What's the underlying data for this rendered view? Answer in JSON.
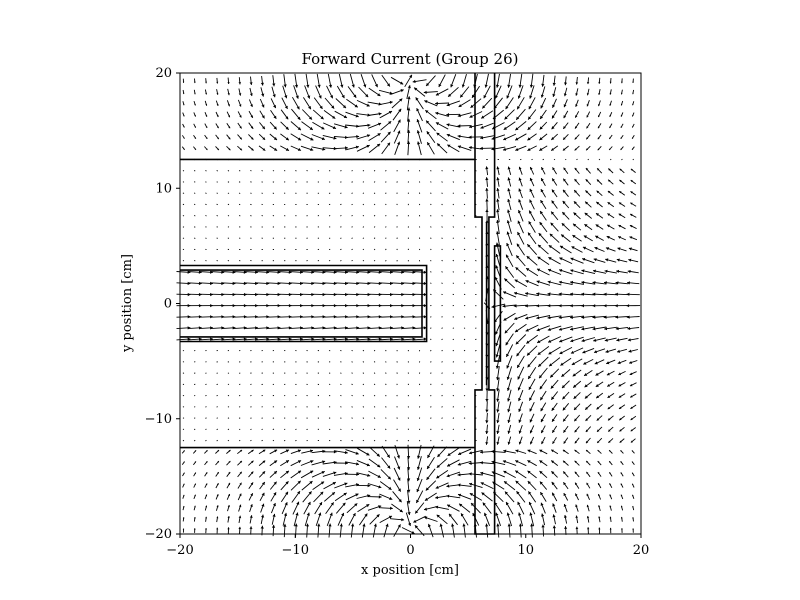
{
  "chart_data": {
    "type": "quiver",
    "title": "Forward Current (Group 26)",
    "xlabel": "x position [cm]",
    "ylabel": "y position [cm]",
    "xlim": [
      -20,
      20
    ],
    "ylim": [
      -20,
      20
    ],
    "xticks": [
      -20,
      -10,
      0,
      10,
      20
    ],
    "yticks": [
      -20,
      -10,
      0,
      10,
      20
    ],
    "xtick_labels": [
      "−20",
      "−10",
      "0",
      "10",
      "20"
    ],
    "ytick_labels": [
      "−20",
      "−10",
      "0",
      "10",
      "20"
    ],
    "grid": false,
    "line_color": "#000000",
    "arrow_color": "#000000",
    "geometry": {
      "upper_boundary": [
        [
          -20,
          12.5
        ],
        [
          5.6,
          12.5
        ]
      ],
      "lower_boundary": [
        [
          -20,
          -12.5
        ],
        [
          5.6,
          -12.5
        ]
      ],
      "rod_outer": [
        [
          -20,
          3.3
        ],
        [
          1.4,
          3.3
        ],
        [
          1.4,
          -3.3
        ],
        [
          -20,
          -3.3
        ]
      ],
      "rod_inner": [
        [
          -20,
          2.9
        ],
        [
          1.0,
          2.9
        ],
        [
          1.0,
          -2.9
        ],
        [
          -20,
          -2.9
        ]
      ],
      "channel_outline": [
        [
          5.6,
          20
        ],
        [
          5.6,
          7.5
        ],
        [
          6.2,
          7.5
        ],
        [
          6.2,
          -7.5
        ],
        [
          5.6,
          -7.5
        ],
        [
          5.6,
          -20
        ],
        [
          7.3,
          -20
        ],
        [
          7.3,
          -7.5
        ],
        [
          6.8,
          -7.5
        ],
        [
          6.8,
          7.5
        ],
        [
          7.3,
          7.5
        ],
        [
          7.3,
          20
        ]
      ],
      "inner_channel": [
        [
          6.6,
          7.1
        ],
        [
          6.6,
          -7.1
        ]
      ],
      "small_rect": [
        [
          7.3,
          5.0
        ],
        [
          7.8,
          5.0
        ],
        [
          7.8,
          -5.0
        ],
        [
          7.3,
          -5.0
        ]
      ]
    },
    "field_regions": [
      {
        "name": "upper-dipole",
        "center": [
          0,
          20
        ],
        "strength": 1.0
      },
      {
        "name": "lower-dipole",
        "center": [
          0,
          -20
        ],
        "strength": 1.0
      },
      {
        "name": "rod-current",
        "x_range": [
          -20,
          1.4
        ],
        "y_range": [
          -3.3,
          3.3
        ],
        "direction": "+x"
      },
      {
        "name": "right-fan",
        "center": [
          7,
          0
        ],
        "strength": 1.0
      }
    ]
  }
}
